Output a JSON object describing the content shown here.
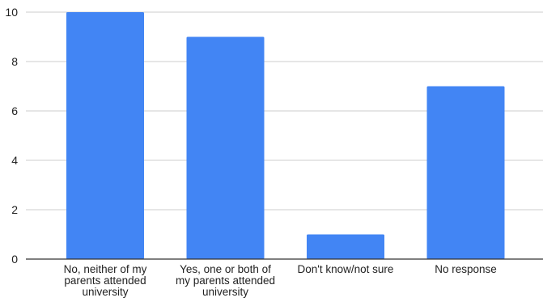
{
  "chart_data": {
    "type": "bar",
    "title": "",
    "xlabel": "",
    "ylabel": "",
    "categories": [
      [
        "No, neither of my",
        "parents attended",
        "university"
      ],
      [
        "Yes, one or both of",
        "my parents attended",
        "university"
      ],
      [
        "Don't know/not sure"
      ],
      [
        "No response"
      ]
    ],
    "values": [
      10,
      9,
      1,
      7
    ],
    "ylim": [
      0,
      10
    ],
    "yticks": [
      0,
      2,
      4,
      6,
      8,
      10
    ],
    "grid": true,
    "legend": "none",
    "colors": {
      "bar": "#4285f4",
      "grid": "#cccccc",
      "axis": "#333333"
    }
  }
}
